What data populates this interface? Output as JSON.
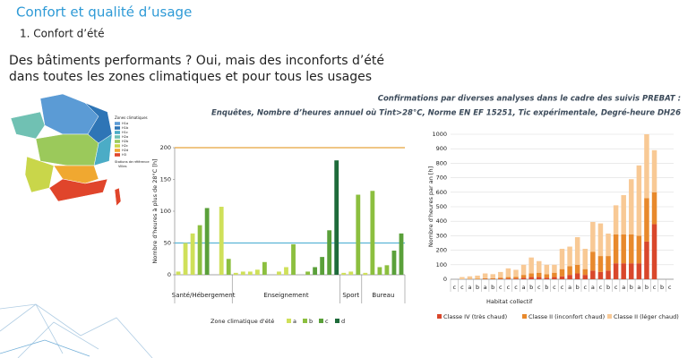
{
  "header": {
    "title": "Confort et qualité d’usage",
    "section": "1. Confort d’été",
    "headline": [
      "Des bâtiments performants ? Oui, mais des inconforts d’été",
      "dans toutes les zones climatiques et pour tous les usages"
    ],
    "note": [
      "Confirmations par diverses analyses dans le cadre des suivis PREBAT :",
      "Enquêtes, Nombre d’heures annuel où Tint>28°C, Norme EN EF 15251, Tic expérimentale, Degré-heure DH26"
    ]
  },
  "map": {
    "legend_title": "Zones climatiques",
    "zones": [
      {
        "name": "H1a",
        "color": "#5b9bd5"
      },
      {
        "name": "H1b",
        "color": "#2e75b6"
      },
      {
        "name": "H1c",
        "color": "#4bacc6"
      },
      {
        "name": "H2a",
        "color": "#70c1b3"
      },
      {
        "name": "H2b",
        "color": "#9bc95b"
      },
      {
        "name": "H2c",
        "color": "#c9d64a"
      },
      {
        "name": "H2d",
        "color": "#f0a830"
      },
      {
        "name": "H3",
        "color": "#e0452b"
      }
    ],
    "notes": [
      "Stations de référence",
      "Villes"
    ]
  },
  "chart_data": [
    {
      "type": "bar",
      "ylabel": "Nombre d'heures à plus de 28°C [h]",
      "xlabel": "Zone climatique d'été",
      "ylim": [
        0,
        200
      ],
      "yticks": [
        0,
        50,
        100,
        150,
        200
      ],
      "ref_lines": [
        {
          "value": 50,
          "color": "#5ab4d6"
        },
        {
          "value": 200,
          "color": "#e8a33c"
        }
      ],
      "groups": [
        {
          "name": "Santé/Hébergement",
          "size": 8
        },
        {
          "name": "Enseignement",
          "size": 15
        },
        {
          "name": "Sport",
          "size": 3
        },
        {
          "name": "Bureau",
          "size": 6
        }
      ],
      "values": [
        5,
        50,
        65,
        78,
        105,
        null,
        107,
        25,
        3,
        5,
        5,
        8,
        20,
        null,
        5,
        12,
        48,
        null,
        5,
        12,
        28,
        70,
        180,
        3,
        5,
        126,
        3,
        132,
        12,
        15,
        38,
        65
      ],
      "colors": [
        "#cfe05a",
        "#cfe05a",
        "#cfe05a",
        "#8cbf3f",
        "#5aa03a",
        null,
        "#cfe05a",
        "#8cbf3f",
        "#cfe05a",
        "#cfe05a",
        "#cfe05a",
        "#cfe05a",
        "#8cbf3f",
        null,
        "#cfe05a",
        "#cfe05a",
        "#8cbf3f",
        null,
        "#8cbf3f",
        "#5aa03a",
        "#5aa03a",
        "#5aa03a",
        "#1e6b3a",
        "#cfe05a",
        "#cfe05a",
        "#8cbf3f",
        "#cfe05a",
        "#8cbf3f",
        "#8cbf3f",
        "#8cbf3f",
        "#5aa03a",
        "#5aa03a"
      ],
      "legend": [
        {
          "name": "a",
          "color": "#cfe05a"
        },
        {
          "name": "b",
          "color": "#8cbf3f"
        },
        {
          "name": "c",
          "color": "#5aa03a"
        },
        {
          "name": "d",
          "color": "#1e6b3a"
        }
      ]
    },
    {
      "type": "stacked_bar",
      "ylabel": "Nombre d'heures par an [h]",
      "xlabel": "Habitat collectif",
      "ylim": [
        0,
        1000
      ],
      "yticks": [
        0,
        100,
        200,
        300,
        400,
        500,
        600,
        700,
        800,
        900,
        1000
      ],
      "categories": [
        "c",
        "c",
        "a",
        "b",
        "a",
        "b",
        "c",
        "c",
        "c",
        "a",
        "b",
        "c",
        "b",
        "c",
        "c",
        "a",
        "b",
        "c",
        "a",
        "c",
        "b",
        "c",
        "a",
        "b",
        "a",
        "b",
        "c",
        "b",
        "c"
      ],
      "series": [
        {
          "name": "Classe IV (très chaud)",
          "color": "#d9472b",
          "values": [
            0,
            0,
            0,
            0,
            2,
            2,
            3,
            5,
            5,
            10,
            15,
            15,
            10,
            15,
            20,
            30,
            40,
            30,
            60,
            50,
            60,
            110,
            110,
            110,
            110,
            260,
            380,
            0,
            0
          ]
        },
        {
          "name": "Classe II (inconfort chaud)",
          "color": "#e8892c",
          "values": [
            0,
            0,
            2,
            3,
            5,
            5,
            8,
            10,
            12,
            20,
            25,
            30,
            25,
            30,
            50,
            60,
            60,
            40,
            130,
            110,
            100,
            200,
            200,
            200,
            190,
            300,
            220,
            0,
            0
          ]
        },
        {
          "name": "Classe II (léger chaud)",
          "color": "#f8c995",
          "values": [
            0,
            15,
            18,
            22,
            33,
            28,
            39,
            60,
            48,
            70,
            110,
            80,
            65,
            55,
            140,
            135,
            190,
            140,
            205,
            225,
            155,
            200,
            270,
            380,
            485,
            440,
            290,
            0,
            0
          ]
        }
      ]
    }
  ]
}
